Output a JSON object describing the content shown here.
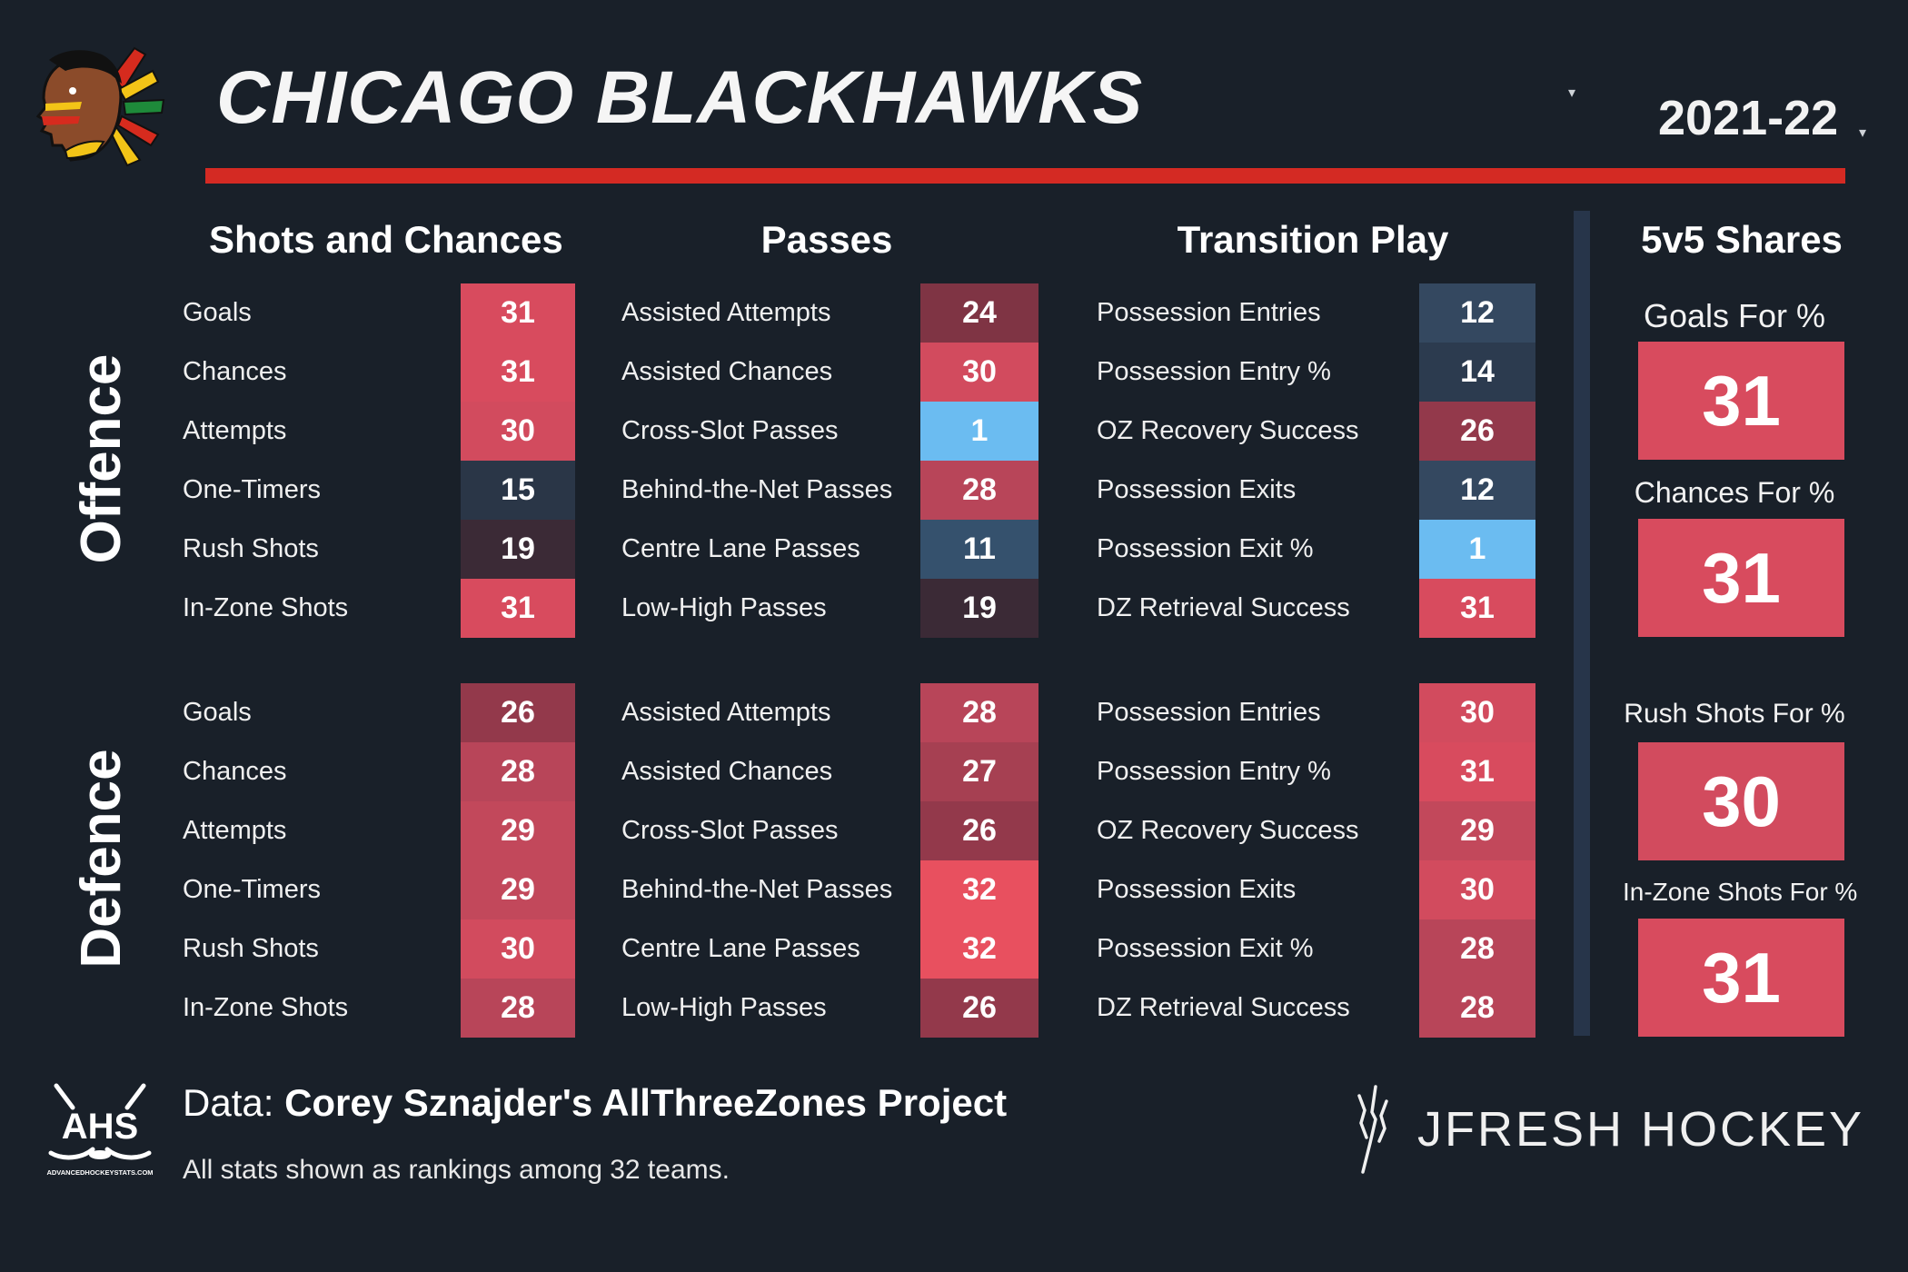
{
  "header": {
    "team": "CHICAGO BLACKHAWKS",
    "season": "2021-22",
    "caret": "▾"
  },
  "sections": {
    "shots": "Shots and Chances",
    "passes": "Passes",
    "transition": "Transition Play",
    "shares": "5v5 Shares"
  },
  "groups": {
    "offence": "Offence",
    "defence": "Defence"
  },
  "offence": {
    "shots": [
      {
        "label": "Goals",
        "rank": "31",
        "color": "#d84b5e"
      },
      {
        "label": "Chances",
        "rank": "31",
        "color": "#d84b5e"
      },
      {
        "label": "Attempts",
        "rank": "30",
        "color": "#d24b5e"
      },
      {
        "label": "One-Timers",
        "rank": "15",
        "color": "#2a3647"
      },
      {
        "label": "Rush Shots",
        "rank": "19",
        "color": "#3b2a36"
      },
      {
        "label": "In-Zone Shots",
        "rank": "31",
        "color": "#d84b5e"
      }
    ],
    "passes": [
      {
        "label": "Assisted Attempts",
        "rank": "24",
        "color": "#7f3444"
      },
      {
        "label": "Assisted Chances",
        "rank": "30",
        "color": "#d24b5e"
      },
      {
        "label": "Cross-Slot Passes",
        "rank": "1",
        "color": "#6bbcf1"
      },
      {
        "label": "Behind-the-Net Passes",
        "rank": "28",
        "color": "#b84559"
      },
      {
        "label": "Centre Lane Passes",
        "rank": "11",
        "color": "#35516d"
      },
      {
        "label": "Low-High Passes",
        "rank": "19",
        "color": "#3b2a36"
      }
    ],
    "transition": [
      {
        "label": "Possession Entries",
        "rank": "12",
        "color": "#344860"
      },
      {
        "label": "Possession Entry %",
        "rank": "14",
        "color": "#2c3b4f"
      },
      {
        "label": "OZ Recovery Success",
        "rank": "26",
        "color": "#93394b"
      },
      {
        "label": "Possession Exits",
        "rank": "12",
        "color": "#344860"
      },
      {
        "label": "Possession Exit %",
        "rank": "1",
        "color": "#6bbcf1"
      },
      {
        "label": "DZ Retrieval Success",
        "rank": "31",
        "color": "#d84b5e"
      }
    ]
  },
  "defence": {
    "shots": [
      {
        "label": "Goals",
        "rank": "26",
        "color": "#93394b"
      },
      {
        "label": "Chances",
        "rank": "28",
        "color": "#b84559"
      },
      {
        "label": "Attempts",
        "rank": "29",
        "color": "#c2485b"
      },
      {
        "label": "One-Timers",
        "rank": "29",
        "color": "#c2485b"
      },
      {
        "label": "Rush Shots",
        "rank": "30",
        "color": "#d24b5e"
      },
      {
        "label": "In-Zone Shots",
        "rank": "28",
        "color": "#b84559"
      }
    ],
    "passes": [
      {
        "label": "Assisted Attempts",
        "rank": "28",
        "color": "#b84559"
      },
      {
        "label": "Assisted Chances",
        "rank": "27",
        "color": "#a64052"
      },
      {
        "label": "Cross-Slot Passes",
        "rank": "26",
        "color": "#93394b"
      },
      {
        "label": "Behind-the-Net Passes",
        "rank": "32",
        "color": "#e8505f"
      },
      {
        "label": "Centre Lane Passes",
        "rank": "32",
        "color": "#e8505f"
      },
      {
        "label": "Low-High Passes",
        "rank": "26",
        "color": "#93394b"
      }
    ],
    "transition": [
      {
        "label": "Possession Entries",
        "rank": "30",
        "color": "#d24b5e"
      },
      {
        "label": "Possession Entry %",
        "rank": "31",
        "color": "#d84b5e"
      },
      {
        "label": "OZ Recovery Success",
        "rank": "29",
        "color": "#c2485b"
      },
      {
        "label": "Possession Exits",
        "rank": "30",
        "color": "#d24b5e"
      },
      {
        "label": "Possession Exit %",
        "rank": "28",
        "color": "#b84559"
      },
      {
        "label": "DZ Retrieval Success",
        "rank": "28",
        "color": "#b84559"
      }
    ]
  },
  "shares": [
    {
      "label": "Goals For %",
      "rank": "31",
      "color": "#d84b5e"
    },
    {
      "label": "Chances For %",
      "rank": "31",
      "color": "#d84b5e"
    },
    {
      "label": "Rush Shots For %",
      "rank": "30",
      "color": "#d24b5e"
    },
    {
      "label": "In-Zone Shots For %",
      "rank": "31",
      "color": "#d84b5e"
    }
  ],
  "footer": {
    "data_prefix": "Data: ",
    "data_source": "Corey Sznajder's AllThreeZones Project",
    "note": "All stats shown as rankings among 32 teams.",
    "brand": "JFRESH HOCKEY",
    "ahs_text": "AHS",
    "ahs_site": "ADVANCEDHOCKEYSTATS.COM"
  }
}
